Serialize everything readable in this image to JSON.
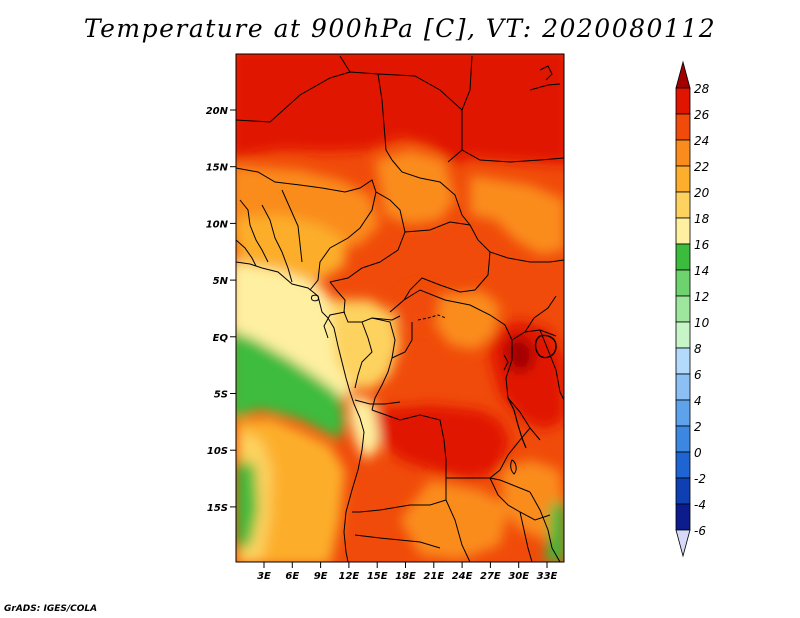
{
  "title": "Temperature at 900hPa [C], VT: 2020080112",
  "credit": "GrADS: IGES/COLA",
  "map": {
    "lat_labels": [
      "20N",
      "15N",
      "10N",
      "5N",
      "EQ",
      "5S",
      "10S",
      "15S"
    ],
    "lon_labels": [
      "3E",
      "6E",
      "9E",
      "12E",
      "15E",
      "18E",
      "21E",
      "24E",
      "27E",
      "30E",
      "33E"
    ]
  },
  "colorbar": {
    "labels": [
      "28",
      "26",
      "24",
      "22",
      "20",
      "18",
      "16",
      "14",
      "12",
      "10",
      "8",
      "6",
      "4",
      "2",
      "0",
      "-2",
      "-4",
      "-6"
    ],
    "colors": [
      "#a00000",
      "#e11400",
      "#f04b0a",
      "#fa8c1e",
      "#fcae2c",
      "#fdd25f",
      "#fef0a0",
      "#3cbc3c",
      "#6ed26e",
      "#9ee69e",
      "#c8f5c8",
      "#b3d9fb",
      "#8cc0f5",
      "#5fa2ec",
      "#3c87e0",
      "#1e64d2",
      "#0e40b4",
      "#0c1c8c",
      "#d8d8f8"
    ]
  }
}
